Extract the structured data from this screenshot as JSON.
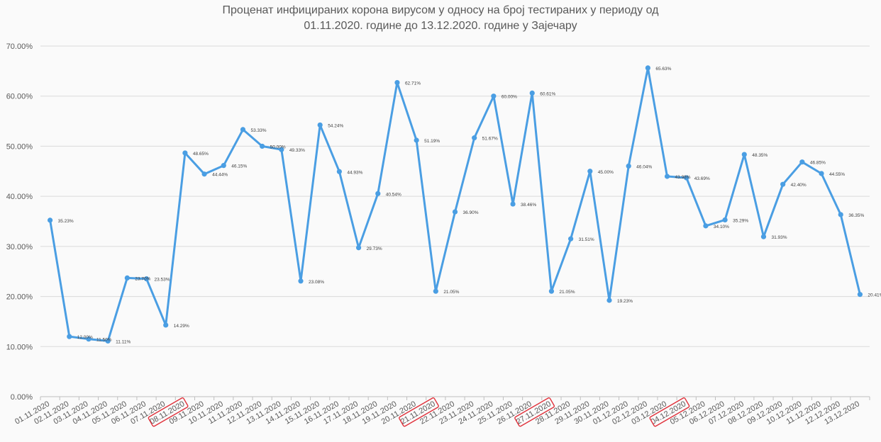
{
  "chart_data": {
    "type": "line",
    "title_line1": "Проценат инфицираних корона вирусом у односу на број тестираних у периоду од",
    "title_line2": "01.11.2020. године до 13.12.2020. године у Зајечару",
    "xlabel": "",
    "ylabel": "",
    "ylim": [
      0,
      70
    ],
    "yticks": [
      "0.00%",
      "10.00%",
      "20.00%",
      "30.00%",
      "40.00%",
      "50.00%",
      "60.00%",
      "70.00%"
    ],
    "grid": true,
    "legend": "none",
    "line_color": "#4a9ee3",
    "highlight_color": "#e0303a",
    "categories": [
      "01.11.2020",
      "02.11.2020",
      "03.11.2020",
      "04.11.2020",
      "05.11.2020",
      "06.11.2020",
      "07.11.2020",
      "08.11.2020",
      "09.11.2020",
      "10.11.2020",
      "11.11.2020",
      "12.11.2020",
      "13.11.2020",
      "14.11.2020",
      "15.11.2020",
      "16.11.2020",
      "17.11.2020",
      "18.11.2020",
      "19.11.2020",
      "20.11.2020",
      "21.11.2020",
      "22.11.2020",
      "23.11.2020",
      "24.11.2020",
      "25.11.2020",
      "26.11.2020",
      "27.11.2020",
      "28.11.2020",
      "29.11.2020",
      "30.11.2020",
      "01.12.2020",
      "02.12.2020",
      "03.12.2020",
      "04.12.2020",
      "05.12.2020",
      "06.12.2020",
      "07.12.2020",
      "08.12.2020",
      "09.12.2020",
      "10.12.2020",
      "11.12.2020",
      "12.12.2020",
      "13.12.2020"
    ],
    "values": [
      35.23,
      12.0,
      11.5,
      11.11,
      23.7,
      23.53,
      14.29,
      48.65,
      44.44,
      46.15,
      53.33,
      50.0,
      49.33,
      23.08,
      54.24,
      44.93,
      29.73,
      40.54,
      62.71,
      51.19,
      21.05,
      36.9,
      51.67,
      60.0,
      38.46,
      60.61,
      21.05,
      31.51,
      45.0,
      19.23,
      46.04,
      65.63,
      43.98,
      43.69,
      34.1,
      35.29,
      48.35,
      31.93,
      42.4,
      46.85,
      44.55,
      36.35,
      20.41
    ],
    "value_labels": [
      "35.23%",
      "12.00%",
      "11.50%",
      "11.11%",
      "23.70%",
      "23.53%",
      "14.29%",
      "48.65%",
      "44.44%",
      "46.15%",
      "53.33%",
      "50.00%",
      "49.33%",
      "23.08%",
      "54.24%",
      "44.93%",
      "29.73%",
      "40.54%",
      "62.71%",
      "51.19%",
      "21.05%",
      "36.90%",
      "51.67%",
      "60.00%",
      "38.46%",
      "60.61%",
      "21.05%",
      "31.51%",
      "45.00%",
      "19.23%",
      "46.04%",
      "65.63%",
      "43.98%",
      "43.69%",
      "34.10%",
      "35.29%",
      "48.35%",
      "31.93%",
      "42.40%",
      "46.85%",
      "44.55%",
      "36.35%",
      "20.41%"
    ],
    "highlighted_categories": [
      "08.11.2020",
      "21.11.2020",
      "27.11.2020",
      "04.12.2020"
    ]
  }
}
